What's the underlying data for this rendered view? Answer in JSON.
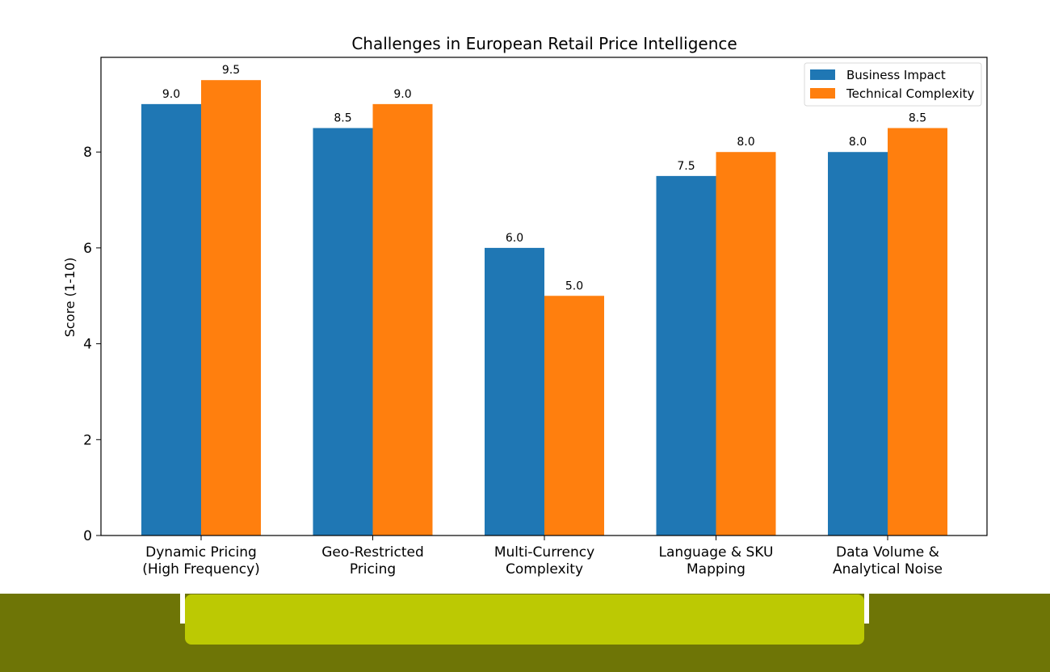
{
  "colors": {
    "series_1": "#1f77b4",
    "series_2": "#ff7f0e",
    "footer_dark": "#6e7506",
    "footer_light": "#bcc903"
  },
  "chart_data": {
    "type": "bar",
    "title": "Challenges in European Retail Price Intelligence",
    "xlabel": "",
    "ylabel": "Score (1-10)",
    "ylim": [
      0,
      9.975
    ],
    "yticks": [
      0,
      2,
      4,
      6,
      8
    ],
    "grid": false,
    "legend_position": "top-right",
    "categories": [
      [
        "Dynamic Pricing",
        "(High Frequency)"
      ],
      [
        "Geo-Restricted",
        "Pricing"
      ],
      [
        "Multi-Currency",
        "Complexity"
      ],
      [
        "Language & SKU",
        "Mapping"
      ],
      [
        "Data Volume &",
        "Analytical Noise"
      ]
    ],
    "series": [
      {
        "name": "Business Impact",
        "values": [
          9.0,
          8.5,
          6.0,
          7.5,
          8.0
        ],
        "labels": [
          "9.0",
          "8.5",
          "6.0",
          "7.5",
          "8.0"
        ]
      },
      {
        "name": "Technical Complexity",
        "values": [
          9.5,
          9.0,
          5.0,
          8.0,
          8.5
        ],
        "labels": [
          "9.5",
          "9.0",
          "5.0",
          "8.0",
          "8.5"
        ]
      }
    ]
  }
}
